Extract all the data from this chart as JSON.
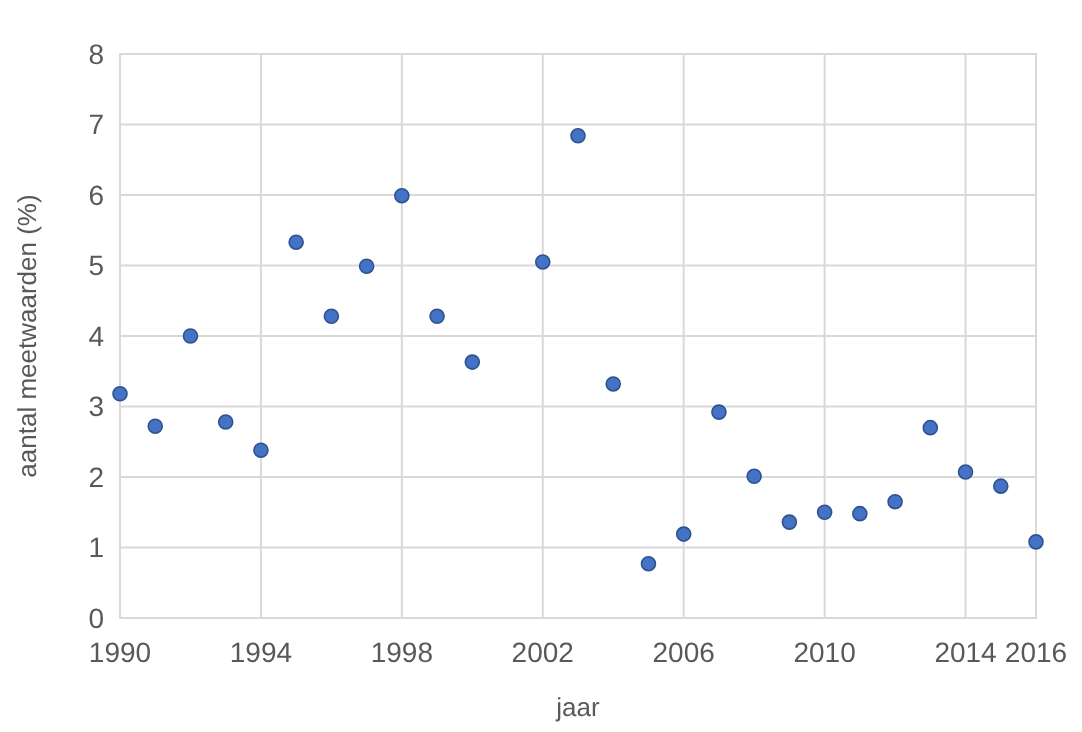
{
  "chart_data": {
    "type": "scatter",
    "xlabel": "jaar",
    "ylabel": "aantal meetwaarden (%)",
    "x": [
      1990,
      1991,
      1992,
      1993,
      1994,
      1995,
      1996,
      1997,
      1998,
      1999,
      2000,
      2002,
      2003,
      2004,
      2005,
      2006,
      2007,
      2008,
      2009,
      2010,
      2011,
      2012,
      2013,
      2014,
      2015,
      2016
    ],
    "series": [
      {
        "color": "#4472c4",
        "values": [
          3.18,
          2.72,
          4.0,
          2.78,
          2.38,
          5.33,
          4.28,
          4.99,
          5.99,
          4.28,
          3.63,
          5.05,
          6.84,
          3.32,
          0.77,
          1.19,
          2.92,
          2.01,
          1.36,
          1.5,
          1.48,
          1.65,
          2.7,
          2.07,
          1.87,
          1.08
        ]
      }
    ],
    "xlim": [
      1990,
      2016
    ],
    "xticks": [
      1990,
      1994,
      1998,
      2002,
      2006,
      2010,
      2014,
      2016
    ],
    "ylim": [
      0,
      8
    ],
    "yticks": [
      0,
      1,
      2,
      3,
      4,
      5,
      6,
      7,
      8
    ],
    "grid": true,
    "marker": "circle"
  }
}
